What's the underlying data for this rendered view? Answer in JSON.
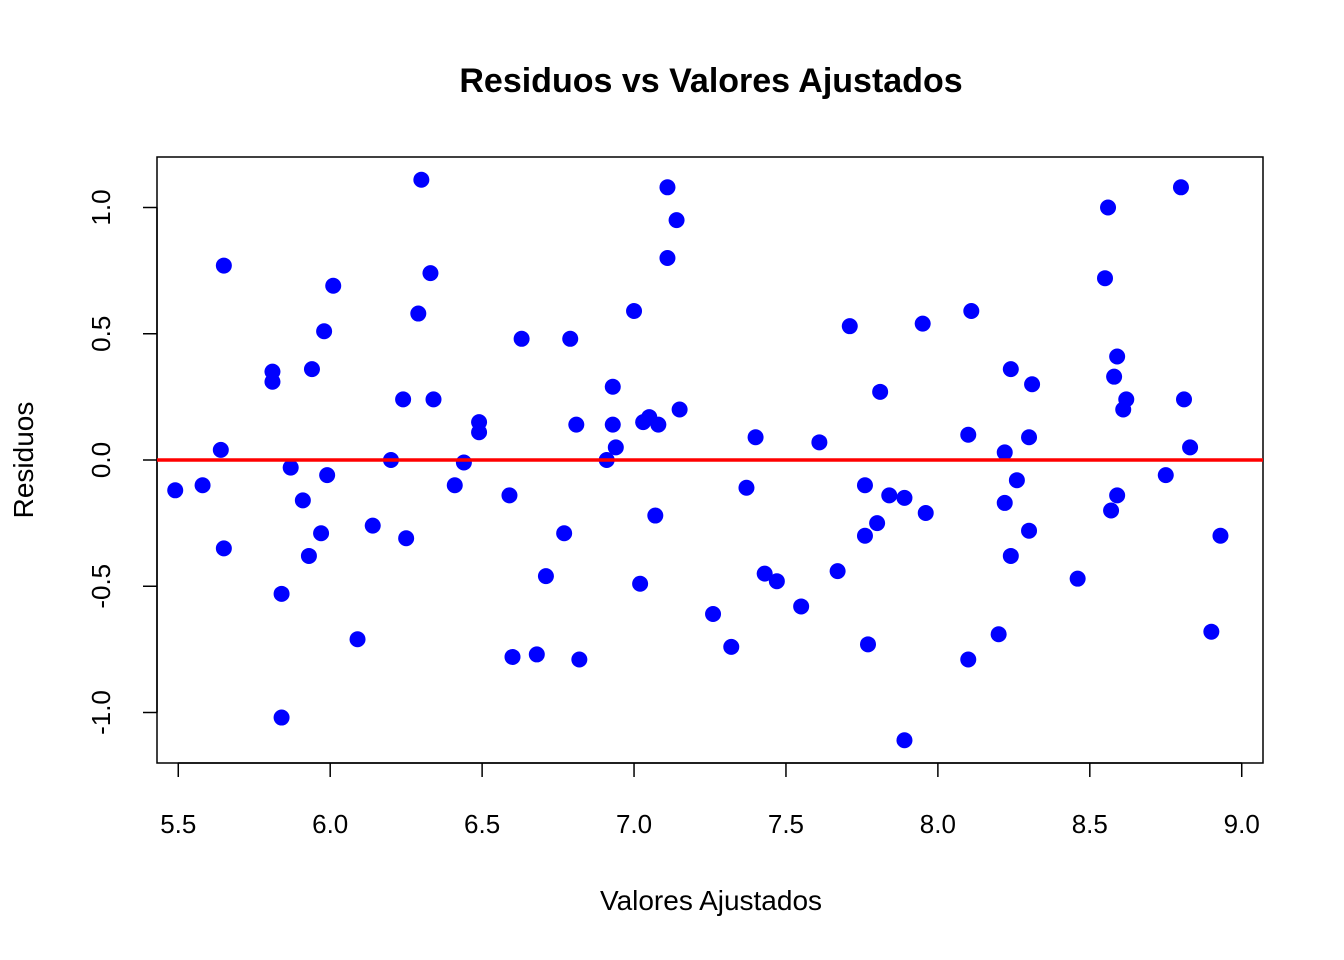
{
  "chart_data": {
    "type": "scatter",
    "title": "Residuos vs Valores Ajustados",
    "xlabel": "Valores Ajustados",
    "ylabel": "Residuos",
    "xlim": [
      5.43,
      9.07
    ],
    "ylim": [
      -1.2,
      1.2
    ],
    "x_ticks": [
      "5.5",
      "6.0",
      "6.5",
      "7.0",
      "7.5",
      "8.0",
      "8.5",
      "9.0"
    ],
    "y_ticks": [
      "-1.0",
      "-0.5",
      "0.0",
      "0.5",
      "1.0"
    ],
    "grid": false,
    "legend": "none",
    "point_color": "#0000ff",
    "reference_line": {
      "y": 0.0,
      "color": "#ff0000"
    },
    "series": [
      {
        "points": [
          [
            5.49,
            -0.12
          ],
          [
            5.58,
            -0.1
          ],
          [
            5.64,
            0.04
          ],
          [
            5.65,
            0.77
          ],
          [
            5.65,
            -0.35
          ],
          [
            5.81,
            0.35
          ],
          [
            5.81,
            0.31
          ],
          [
            5.84,
            -0.53
          ],
          [
            5.84,
            -1.02
          ],
          [
            5.87,
            -0.03
          ],
          [
            5.91,
            -0.16
          ],
          [
            5.93,
            -0.38
          ],
          [
            5.94,
            0.36
          ],
          [
            5.97,
            -0.29
          ],
          [
            5.98,
            0.51
          ],
          [
            5.99,
            -0.06
          ],
          [
            6.01,
            0.69
          ],
          [
            6.09,
            -0.71
          ],
          [
            6.14,
            -0.26
          ],
          [
            6.2,
            0.0
          ],
          [
            6.24,
            0.24
          ],
          [
            6.25,
            -0.31
          ],
          [
            6.29,
            0.58
          ],
          [
            6.3,
            1.11
          ],
          [
            6.33,
            0.74
          ],
          [
            6.34,
            0.24
          ],
          [
            6.41,
            -0.1
          ],
          [
            6.44,
            -0.01
          ],
          [
            6.49,
            0.15
          ],
          [
            6.49,
            0.11
          ],
          [
            6.59,
            -0.14
          ],
          [
            6.6,
            -0.78
          ],
          [
            6.63,
            0.48
          ],
          [
            6.68,
            -0.77
          ],
          [
            6.71,
            -0.46
          ],
          [
            6.77,
            -0.29
          ],
          [
            6.79,
            0.48
          ],
          [
            6.81,
            0.14
          ],
          [
            6.82,
            -0.79
          ],
          [
            6.91,
            0.0
          ],
          [
            6.93,
            0.29
          ],
          [
            6.93,
            0.14
          ],
          [
            6.94,
            0.05
          ],
          [
            7.0,
            0.59
          ],
          [
            7.02,
            -0.49
          ],
          [
            7.03,
            0.15
          ],
          [
            7.05,
            0.17
          ],
          [
            7.07,
            -0.22
          ],
          [
            7.08,
            0.14
          ],
          [
            7.11,
            1.08
          ],
          [
            7.11,
            0.8
          ],
          [
            7.14,
            0.95
          ],
          [
            7.15,
            0.2
          ],
          [
            7.26,
            -0.61
          ],
          [
            7.32,
            -0.74
          ],
          [
            7.37,
            -0.11
          ],
          [
            7.4,
            0.09
          ],
          [
            7.43,
            -0.45
          ],
          [
            7.47,
            -0.48
          ],
          [
            7.55,
            -0.58
          ],
          [
            7.61,
            0.07
          ],
          [
            7.67,
            -0.44
          ],
          [
            7.71,
            0.53
          ],
          [
            7.76,
            -0.1
          ],
          [
            7.76,
            -0.3
          ],
          [
            7.77,
            -0.73
          ],
          [
            7.8,
            -0.25
          ],
          [
            7.81,
            0.27
          ],
          [
            7.84,
            -0.14
          ],
          [
            7.89,
            -0.15
          ],
          [
            7.89,
            -1.11
          ],
          [
            7.95,
            0.54
          ],
          [
            7.96,
            -0.21
          ],
          [
            8.1,
            0.1
          ],
          [
            8.1,
            -0.79
          ],
          [
            8.11,
            0.59
          ],
          [
            8.2,
            -0.69
          ],
          [
            8.22,
            0.03
          ],
          [
            8.22,
            -0.17
          ],
          [
            8.24,
            0.36
          ],
          [
            8.24,
            -0.38
          ],
          [
            8.26,
            -0.08
          ],
          [
            8.3,
            0.09
          ],
          [
            8.3,
            -0.28
          ],
          [
            8.31,
            0.3
          ],
          [
            8.46,
            -0.47
          ],
          [
            8.55,
            0.72
          ],
          [
            8.56,
            1.0
          ],
          [
            8.57,
            -0.2
          ],
          [
            8.58,
            0.33
          ],
          [
            8.59,
            0.41
          ],
          [
            8.59,
            -0.14
          ],
          [
            8.61,
            0.2
          ],
          [
            8.62,
            0.24
          ],
          [
            8.75,
            -0.06
          ],
          [
            8.8,
            1.08
          ],
          [
            8.81,
            0.24
          ],
          [
            8.83,
            0.05
          ],
          [
            8.9,
            -0.68
          ],
          [
            8.93,
            -0.3
          ]
        ]
      }
    ]
  }
}
